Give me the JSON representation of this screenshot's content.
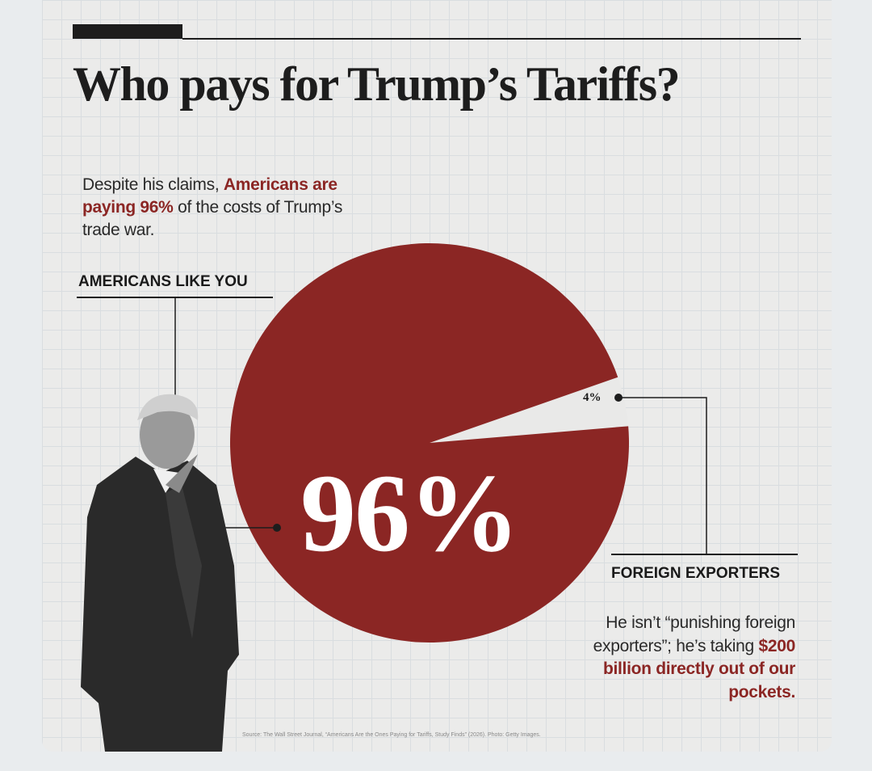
{
  "title": "Who pays for Trump’s Tariffs?",
  "subtitle": [
    "Despite his claims, ",
    "Americans are paying 96%",
    " of the costs of Trump’s trade war."
  ],
  "chart_data": {
    "type": "pie",
    "categories": [
      "AMERICANS LIKE YOU",
      "FOREIGN EXPORTERS"
    ],
    "values": [
      96,
      4
    ],
    "value_labels": [
      "96%",
      "4%"
    ],
    "colors": [
      "#8b2624",
      "#e9e9e8"
    ]
  },
  "annotation": [
    "He isn’t “punishing foreign exporters”; he’s taking ",
    "$200 billion directly out of our pockets."
  ],
  "source": "Source: The Wall Street Journal, “Americans Are the Ones Paying for Tariffs, Study Finds” (2026). Photo: Getty Images."
}
